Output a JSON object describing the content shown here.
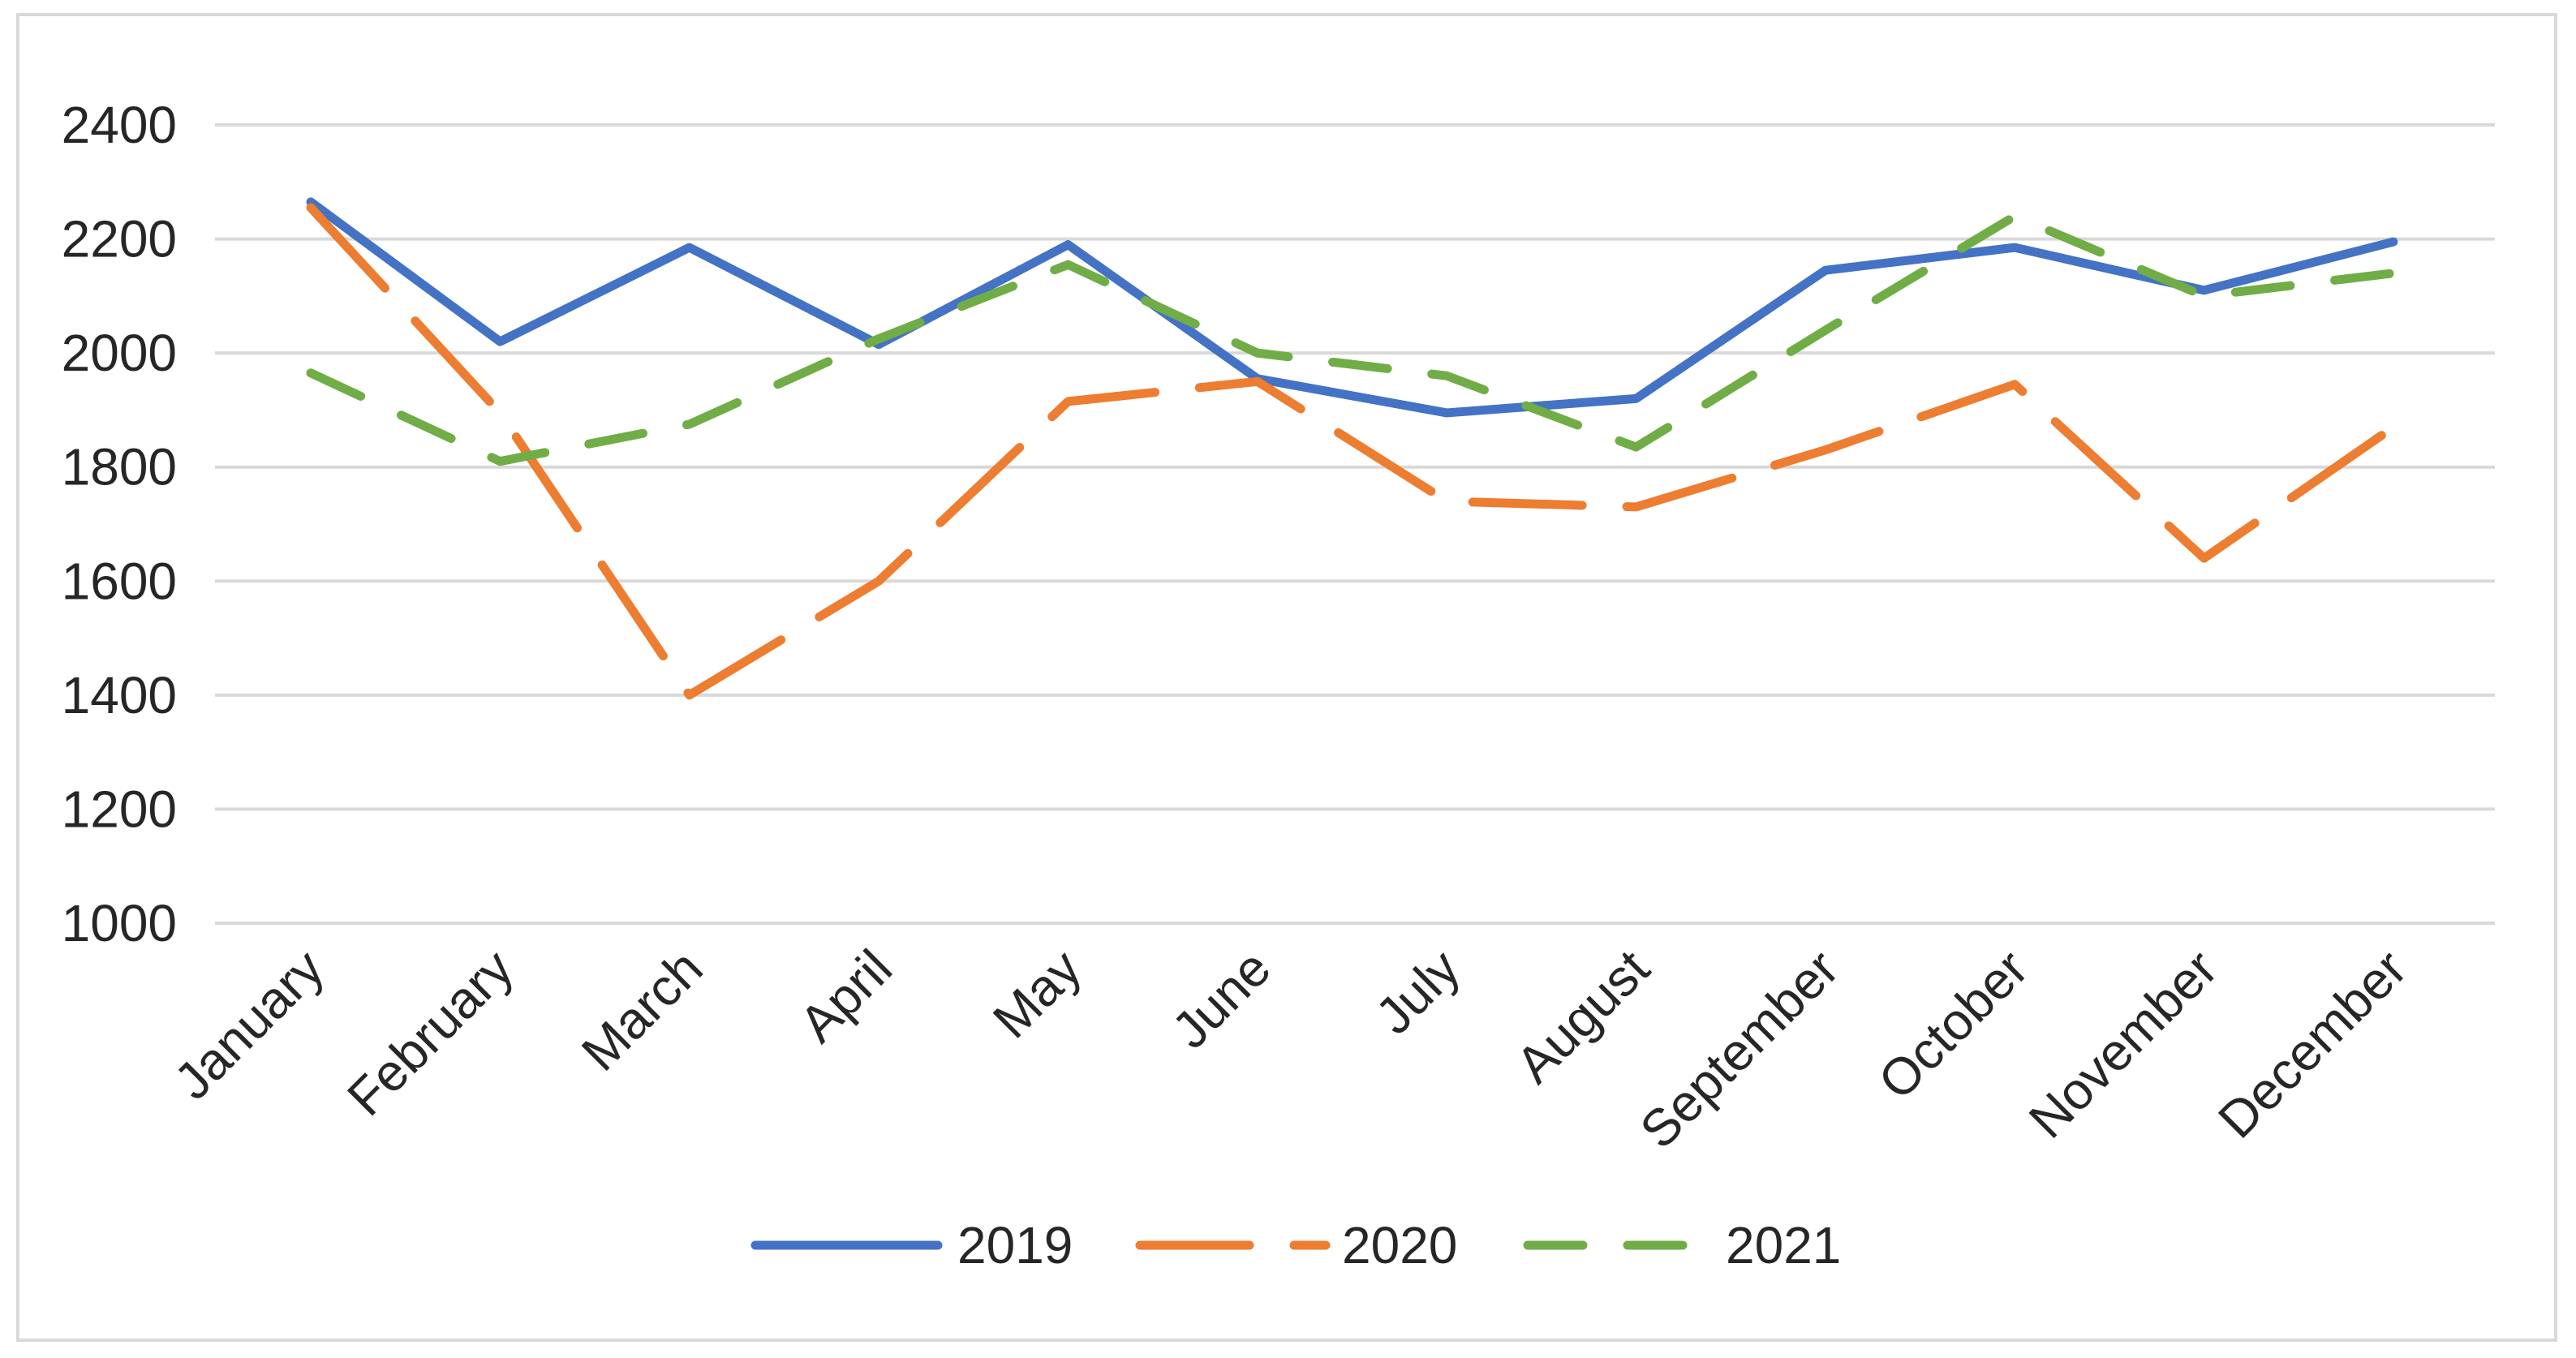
{
  "chart_data": {
    "type": "line",
    "title": "",
    "categories": [
      "January",
      "February",
      "March",
      "April",
      "May",
      "June",
      "July",
      "August",
      "September",
      "October",
      "November",
      "December"
    ],
    "series": [
      {
        "name": "2019",
        "color": "#4472C4",
        "dash_style": "solid",
        "values": [
          2265,
          2020,
          2185,
          2015,
          2190,
          1955,
          1895,
          1920,
          2145,
          2185,
          2110,
          2195
        ]
      },
      {
        "name": "2020",
        "color": "#ED7D31",
        "dash_style": "long-dash",
        "values": [
          2255,
          1895,
          1400,
          1600,
          1915,
          1950,
          1740,
          1730,
          1830,
          1945,
          1640,
          1870
        ]
      },
      {
        "name": "2021",
        "color": "#70AD47",
        "dash_style": "dash",
        "values": [
          1965,
          1810,
          1875,
          2025,
          2155,
          2000,
          1960,
          1835,
          2040,
          2240,
          2100,
          2140
        ]
      }
    ],
    "xlabel": "",
    "ylabel": "",
    "ylim": [
      1000,
      2400
    ],
    "y_tick_step": 200,
    "y_tick_labels": [
      "2400",
      "2200",
      "2000",
      "1800",
      "1600",
      "1400",
      "1200",
      "1000"
    ],
    "grid": true,
    "legend_position": "bottom",
    "legend_entries": [
      "2019",
      "2020",
      "2021"
    ]
  },
  "colors": {
    "background": "#FFFFFF",
    "gridline": "#D9D9D9",
    "outer_border": "#D9D9D9",
    "text": "#262626",
    "series_2019": "#4472C4",
    "series_2020": "#ED7D31",
    "series_2021": "#70AD47"
  }
}
